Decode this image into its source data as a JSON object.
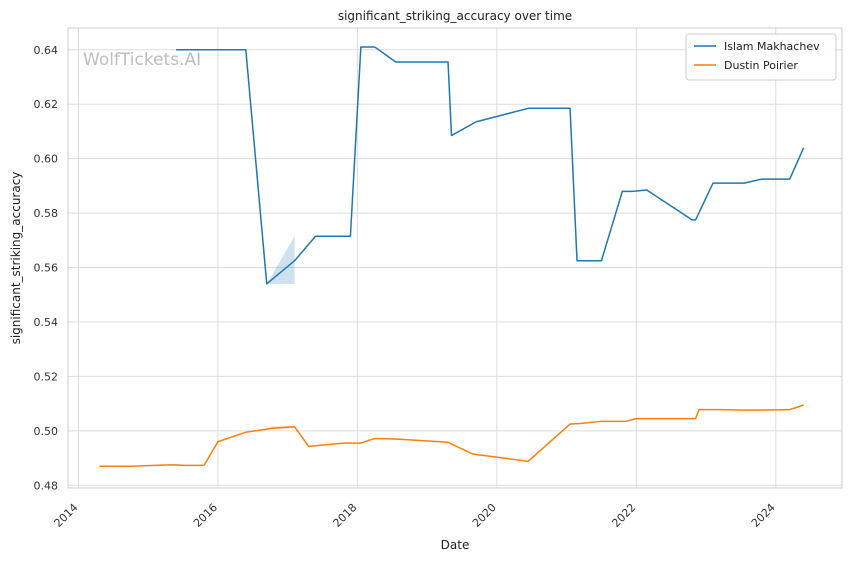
{
  "chart_data": {
    "type": "line",
    "title": "significant_striking_accuracy over time",
    "xlabel": "Date",
    "ylabel": "significant_striking_accuracy",
    "watermark": "WolfTickets.AI",
    "xlim": [
      2013.85,
      2024.95
    ],
    "ylim": [
      0.479,
      0.648
    ],
    "x_ticks": [
      2014,
      2016,
      2018,
      2020,
      2022,
      2024
    ],
    "x_tick_labels": [
      "2014",
      "2016",
      "2018",
      "2020",
      "2022",
      "2024"
    ],
    "y_ticks": [
      0.48,
      0.5,
      0.52,
      0.54,
      0.56,
      0.58,
      0.6,
      0.62,
      0.64
    ],
    "y_tick_labels": [
      "0.48",
      "0.50",
      "0.52",
      "0.54",
      "0.56",
      "0.58",
      "0.60",
      "0.62",
      "0.64"
    ],
    "grid": true,
    "legend_position": "top-right",
    "series": [
      {
        "name": "Islam Makhachev",
        "color": "#1f77b4",
        "points": [
          [
            2015.4,
            0.64
          ],
          [
            2015.6,
            0.64
          ],
          [
            2016.4,
            0.64
          ],
          [
            2016.7,
            0.554
          ],
          [
            2017.1,
            0.5625
          ],
          [
            2017.4,
            0.5715
          ],
          [
            2017.9,
            0.5715
          ],
          [
            2018.05,
            0.641
          ],
          [
            2018.25,
            0.641
          ],
          [
            2018.55,
            0.6355
          ],
          [
            2019.3,
            0.6355
          ],
          [
            2019.35,
            0.6085
          ],
          [
            2019.7,
            0.6135
          ],
          [
            2020.45,
            0.6185
          ],
          [
            2021.05,
            0.6185
          ],
          [
            2021.15,
            0.5625
          ],
          [
            2021.5,
            0.5625
          ],
          [
            2021.8,
            0.588
          ],
          [
            2021.95,
            0.588
          ],
          [
            2022.15,
            0.5885
          ],
          [
            2022.8,
            0.5775
          ],
          [
            2022.85,
            0.5775
          ],
          [
            2023.1,
            0.591
          ],
          [
            2023.55,
            0.591
          ],
          [
            2023.8,
            0.5925
          ],
          [
            2024.2,
            0.5925
          ],
          [
            2024.4,
            0.604
          ]
        ],
        "band": [
          [
            2016.7,
            0.554,
            0.554
          ],
          [
            2017.1,
            0.554,
            0.5715
          ]
        ]
      },
      {
        "name": "Dustin Poirier",
        "color": "#ff7f0e",
        "points": [
          [
            2014.3,
            0.487
          ],
          [
            2014.75,
            0.487
          ],
          [
            2015.3,
            0.4875
          ],
          [
            2015.4,
            0.4875
          ],
          [
            2015.5,
            0.4873
          ],
          [
            2015.8,
            0.4873
          ],
          [
            2016.0,
            0.496
          ],
          [
            2016.4,
            0.4995
          ],
          [
            2016.8,
            0.501
          ],
          [
            2017.1,
            0.5015
          ],
          [
            2017.3,
            0.4943
          ],
          [
            2017.8,
            0.4955
          ],
          [
            2018.05,
            0.4955
          ],
          [
            2018.25,
            0.4972
          ],
          [
            2018.55,
            0.497
          ],
          [
            2019.3,
            0.4958
          ],
          [
            2019.65,
            0.4915
          ],
          [
            2020.45,
            0.4888
          ],
          [
            2021.05,
            0.5025
          ],
          [
            2021.2,
            0.5027
          ],
          [
            2021.5,
            0.5035
          ],
          [
            2021.85,
            0.5035
          ],
          [
            2022.0,
            0.5045
          ],
          [
            2022.85,
            0.5045
          ],
          [
            2022.9,
            0.5078
          ],
          [
            2023.2,
            0.5078
          ],
          [
            2023.55,
            0.5076
          ],
          [
            2024.0,
            0.5077
          ],
          [
            2024.2,
            0.5078
          ],
          [
            2024.4,
            0.5095
          ]
        ],
        "band": [
          [
            2016.7,
            0.5005,
            0.5015
          ],
          [
            2017.1,
            0.501,
            0.502
          ]
        ]
      }
    ]
  }
}
